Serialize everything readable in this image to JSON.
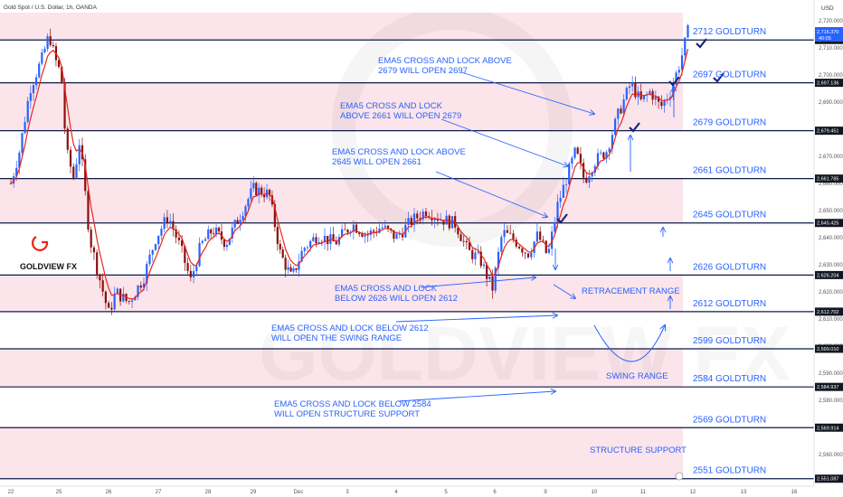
{
  "header": {
    "symbol": "Gold Spot / U.S. Dollar, 1h, OANDA",
    "currency": "USD"
  },
  "logo": {
    "text": "GOLDVIEW FX",
    "watermark": "GOLDVIEW FX"
  },
  "price_badges": {
    "current": "2,716.370",
    "countdown": "40:05"
  },
  "colors": {
    "up": "#2962ff",
    "down": "#8b0f0f",
    "ema": "#e8271b",
    "band": "#fbe4ea",
    "level": "#0d1b4a",
    "text": "#2962ff"
  },
  "chart_data": {
    "type": "candlestick",
    "ylim": [
      2550,
      2725
    ],
    "y_ticks": [
      "2,720.000",
      "2,710.000",
      "2,700.000",
      "2,690.000",
      "2,680.000",
      "2,670.000",
      "2,660.000",
      "2,650.000",
      "2,640.000",
      "2,630.000",
      "2,620.000",
      "2,610.000",
      "2,600.000",
      "2,590.000",
      "2,580.000",
      "2,570.000",
      "2,560.000"
    ],
    "x_ticks": [
      {
        "label": "22",
        "time": 0
      },
      {
        "label": "25",
        "time": 1
      },
      {
        "label": "26",
        "time": 2
      },
      {
        "label": "27",
        "time": 3
      },
      {
        "label": "28",
        "time": 4
      },
      {
        "label": "29",
        "time": 5
      },
      {
        "label": "Dec",
        "time": 6
      },
      {
        "label": "3",
        "time": 7
      },
      {
        "label": "4",
        "time": 8
      },
      {
        "label": "5",
        "time": 9
      },
      {
        "label": "6",
        "time": 10
      },
      {
        "label": "9",
        "time": 11
      },
      {
        "label": "10",
        "time": 12
      },
      {
        "label": "11",
        "time": 13
      },
      {
        "label": "12",
        "time": 14
      },
      {
        "label": "13",
        "time": 15
      },
      {
        "label": "16",
        "time": 16
      }
    ],
    "levels": [
      {
        "price": 2712.92,
        "label": "2712 GOLDTURN",
        "badge": "2,712.920"
      },
      {
        "price": 2697.136,
        "label": "2697 GOLDTURN",
        "badge": "2,697.136"
      },
      {
        "price": 2679.451,
        "label": "2679 GOLDTURN",
        "badge": "2,679.451"
      },
      {
        "price": 2661.785,
        "label": "2661 GOLDTURN",
        "badge": "2,661.785"
      },
      {
        "price": 2645.425,
        "label": "2645 GOLDTURN",
        "badge": "2,645.425"
      },
      {
        "price": 2626.204,
        "label": "2626 GOLDTURN",
        "badge": "2,626.204"
      },
      {
        "price": 2612.702,
        "label": "2612 GOLDTURN",
        "badge": "2,612.702"
      },
      {
        "price": 2599.01,
        "label": "2599 GOLDTURN",
        "badge": "2,599.010"
      },
      {
        "price": 2584.937,
        "label": "2584 GOLDTURN",
        "badge": "2,584.937"
      },
      {
        "price": 2569.914,
        "label": "2569 GOLDTURN",
        "badge": "2,569.914"
      },
      {
        "price": 2551.087,
        "label": "2551 GOLDTURN",
        "badge": "2,551.087"
      }
    ],
    "path": [
      {
        "t": 0.0,
        "p": 2660
      },
      {
        "t": 0.18,
        "p": 2672
      },
      {
        "t": 0.4,
        "p": 2695
      },
      {
        "t": 0.65,
        "p": 2706
      },
      {
        "t": 0.8,
        "p": 2715
      },
      {
        "t": 0.92,
        "p": 2706
      },
      {
        "t": 1.05,
        "p": 2700
      },
      {
        "t": 1.15,
        "p": 2672
      },
      {
        "t": 1.3,
        "p": 2662
      },
      {
        "t": 1.42,
        "p": 2676
      },
      {
        "t": 1.62,
        "p": 2640
      },
      {
        "t": 1.82,
        "p": 2625
      },
      {
        "t": 2.0,
        "p": 2612
      },
      {
        "t": 2.15,
        "p": 2620
      },
      {
        "t": 2.4,
        "p": 2616
      },
      {
        "t": 2.7,
        "p": 2625
      },
      {
        "t": 2.95,
        "p": 2640
      },
      {
        "t": 3.2,
        "p": 2648
      },
      {
        "t": 3.45,
        "p": 2636
      },
      {
        "t": 3.65,
        "p": 2624
      },
      {
        "t": 3.85,
        "p": 2637
      },
      {
        "t": 4.1,
        "p": 2643
      },
      {
        "t": 4.4,
        "p": 2638
      },
      {
        "t": 4.7,
        "p": 2648
      },
      {
        "t": 5.0,
        "p": 2658
      },
      {
        "t": 5.35,
        "p": 2656
      },
      {
        "t": 5.6,
        "p": 2634
      },
      {
        "t": 5.85,
        "p": 2625
      },
      {
        "t": 6.1,
        "p": 2636
      },
      {
        "t": 6.4,
        "p": 2641
      },
      {
        "t": 6.75,
        "p": 2638
      },
      {
        "t": 7.1,
        "p": 2645
      },
      {
        "t": 7.4,
        "p": 2641
      },
      {
        "t": 7.7,
        "p": 2644
      },
      {
        "t": 8.0,
        "p": 2640
      },
      {
        "t": 8.3,
        "p": 2646
      },
      {
        "t": 8.6,
        "p": 2650
      },
      {
        "t": 8.9,
        "p": 2647
      },
      {
        "t": 9.2,
        "p": 2645
      },
      {
        "t": 9.45,
        "p": 2635
      },
      {
        "t": 9.7,
        "p": 2632
      },
      {
        "t": 9.95,
        "p": 2621
      },
      {
        "t": 10.15,
        "p": 2642
      },
      {
        "t": 10.4,
        "p": 2639
      },
      {
        "t": 10.65,
        "p": 2634
      },
      {
        "t": 10.85,
        "p": 2641
      },
      {
        "t": 11.05,
        "p": 2633
      },
      {
        "t": 11.25,
        "p": 2652
      },
      {
        "t": 11.45,
        "p": 2663
      },
      {
        "t": 11.62,
        "p": 2672
      },
      {
        "t": 11.8,
        "p": 2661
      },
      {
        "t": 12.0,
        "p": 2668
      },
      {
        "t": 12.25,
        "p": 2672
      },
      {
        "t": 12.5,
        "p": 2686
      },
      {
        "t": 12.75,
        "p": 2697
      },
      {
        "t": 12.95,
        "p": 2690
      },
      {
        "t": 13.15,
        "p": 2694
      },
      {
        "t": 13.35,
        "p": 2688
      },
      {
        "t": 13.55,
        "p": 2694
      },
      {
        "t": 13.75,
        "p": 2705
      },
      {
        "t": 13.9,
        "p": 2716
      }
    ]
  },
  "annotations": [
    {
      "lines": [
        "EMA5 CROSS AND LOCK ABOVE",
        "2679 WILL OPEN 2697"
      ]
    },
    {
      "lines": [
        "EMA5 CROSS AND LOCK",
        "ABOVE 2661 WILL OPEN 2679"
      ]
    },
    {
      "lines": [
        "EMA5 CROSS AND LOCK ABOVE",
        "2645 WILL OPEN 2661"
      ]
    },
    {
      "lines": [
        "EMA5 CROSS AND LOCK",
        "BELOW 2626 WILL OPEN 2612"
      ]
    },
    {
      "lines": [
        "EMA5 CROSS AND LOCK BELOW 2612",
        "WILL OPEN THE SWING RANGE"
      ]
    },
    {
      "lines": [
        "EMA5 CROSS AND LOCK BELOW 2584",
        "WILL OPEN STRUCTURE SUPPORT"
      ]
    }
  ],
  "labels": {
    "retracement": "RETRACEMENT RANGE",
    "swing": "SWING RANGE",
    "structure": "STRUCTURE SUPPORT"
  }
}
